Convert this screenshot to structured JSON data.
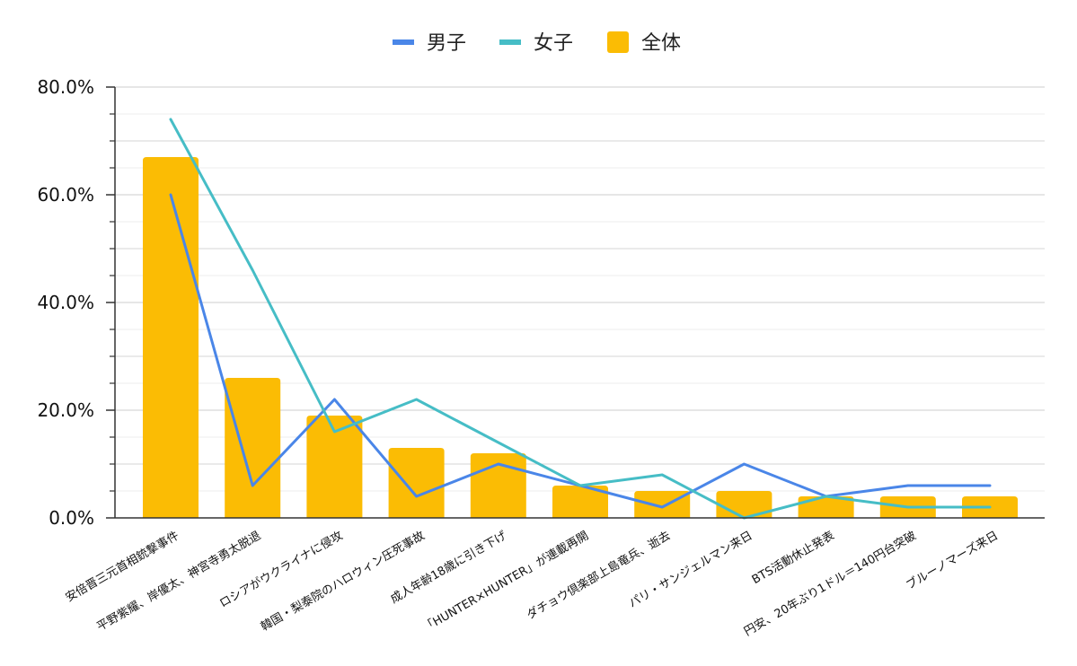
{
  "chart_data": {
    "type": "bar",
    "title": "",
    "xlabel": "",
    "ylabel": "",
    "ylim": [
      0,
      0.8
    ],
    "y_ticks": [
      "0.0%",
      "20.0%",
      "40.0%",
      "60.0%",
      "80.0%"
    ],
    "grid": true,
    "legend_position": "top-center",
    "categories": [
      "安倍晋三元首相銃撃事件",
      "平野紫耀、岸優太、神宮寺勇太脱退",
      "ロシアがウクライナに侵攻",
      "韓国・梨泰院のハロウィン圧死事故",
      "成人年齢18歳に引き下げ",
      "「HUNTER×HUNTER」が連載再開",
      "ダチョウ倶楽部上島竜兵、逝去",
      "パリ・サンジェルマン来日",
      "BTS活動休止発表",
      "円安、20年ぶり1ドル＝140円台突破",
      "ブルーノマーズ来日"
    ],
    "series": [
      {
        "name": "男子",
        "kind": "line",
        "color": "#4a86e8",
        "values": [
          0.6,
          0.06,
          0.22,
          0.04,
          0.1,
          0.06,
          0.02,
          0.1,
          0.04,
          0.06,
          0.06
        ]
      },
      {
        "name": "女子",
        "kind": "line",
        "color": "#46bdc6",
        "values": [
          0.74,
          0.46,
          0.16,
          0.22,
          0.14,
          0.06,
          0.08,
          0.0,
          0.04,
          0.02,
          0.02
        ]
      },
      {
        "name": "全体",
        "kind": "bar",
        "color": "#fbbc04",
        "values": [
          0.67,
          0.26,
          0.19,
          0.13,
          0.12,
          0.06,
          0.05,
          0.05,
          0.04,
          0.04,
          0.04
        ]
      }
    ]
  }
}
